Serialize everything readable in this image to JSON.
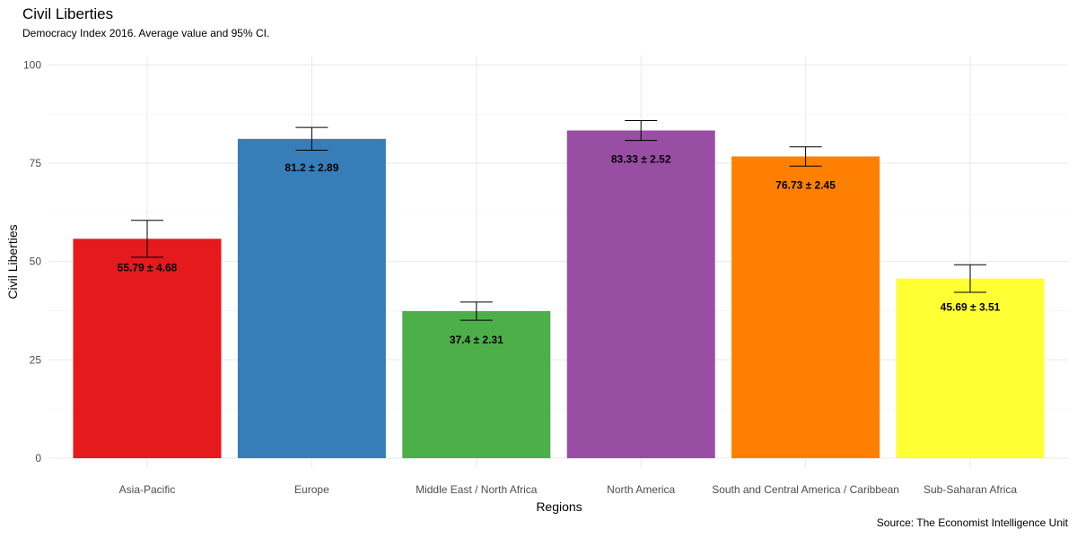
{
  "chart_data": {
    "type": "bar",
    "title": "Civil Liberties",
    "subtitle": "Democracy Index 2016. Average value and 95% CI.",
    "caption": "Source: The Economist Intelligence Unit",
    "xlabel": "Regions",
    "ylabel": "Civil Liberties",
    "ylim": [
      0,
      100
    ],
    "yticks": [
      0,
      25,
      50,
      75,
      100
    ],
    "grid": true,
    "categories": [
      "Asia-Pacific",
      "Europe",
      "Middle East / North Africa",
      "North America",
      "South and Central America / Caribbean",
      "Sub-Saharan Africa"
    ],
    "values": [
      55.79,
      81.2,
      37.4,
      83.33,
      76.73,
      45.69
    ],
    "ci": [
      4.68,
      2.89,
      2.31,
      2.52,
      2.45,
      3.51
    ],
    "labels": [
      "55.79 ± 4.68",
      "81.2 ± 2.89",
      "37.4 ± 2.31",
      "83.33 ± 2.52",
      "76.73 ± 2.45",
      "45.69 ± 3.51"
    ],
    "colors": [
      "#e41a1c",
      "#377eb8",
      "#4daf4a",
      "#984ea3",
      "#ff7f00",
      "#ffff33"
    ]
  }
}
